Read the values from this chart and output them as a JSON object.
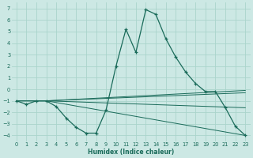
{
  "xlabel": "Humidex (Indice chaleur)",
  "ylabel": "",
  "bg_color": "#cce8e4",
  "grid_color": "#aad4cc",
  "line_color": "#1a6b5a",
  "xlim": [
    -0.5,
    23.5
  ],
  "ylim": [
    -4.5,
    7.5
  ],
  "yticks": [
    -4,
    -3,
    -2,
    -1,
    0,
    1,
    2,
    3,
    4,
    5,
    6,
    7
  ],
  "xticks": [
    0,
    1,
    2,
    3,
    4,
    5,
    6,
    7,
    8,
    9,
    10,
    11,
    12,
    13,
    14,
    15,
    16,
    17,
    18,
    19,
    20,
    21,
    22,
    23
  ],
  "lines": [
    {
      "x": [
        0,
        1,
        2,
        3,
        4,
        5,
        6,
        7,
        8,
        9,
        10,
        11,
        12,
        13,
        14,
        15,
        16,
        17,
        18,
        19,
        20,
        21,
        22,
        23
      ],
      "y": [
        -1,
        -1.3,
        -1.0,
        -1.0,
        -1.5,
        -2.5,
        -3.3,
        -3.8,
        -3.8,
        -1.8,
        2.0,
        5.2,
        3.2,
        6.9,
        6.5,
        4.4,
        2.8,
        1.5,
        0.5,
        -0.2,
        -0.2,
        -1.6,
        -3.2,
        -4.0
      ],
      "markers": true
    },
    {
      "x": [
        0,
        3,
        23
      ],
      "y": [
        -1,
        -1,
        -4.0
      ],
      "markers": false
    },
    {
      "x": [
        0,
        3,
        23
      ],
      "y": [
        -1,
        -1,
        -1.6
      ],
      "markers": false
    },
    {
      "x": [
        0,
        3,
        23
      ],
      "y": [
        -1,
        -1,
        -0.3
      ],
      "markers": false
    },
    {
      "x": [
        0,
        3,
        23
      ],
      "y": [
        -1,
        -1,
        -0.1
      ],
      "markers": false
    }
  ]
}
